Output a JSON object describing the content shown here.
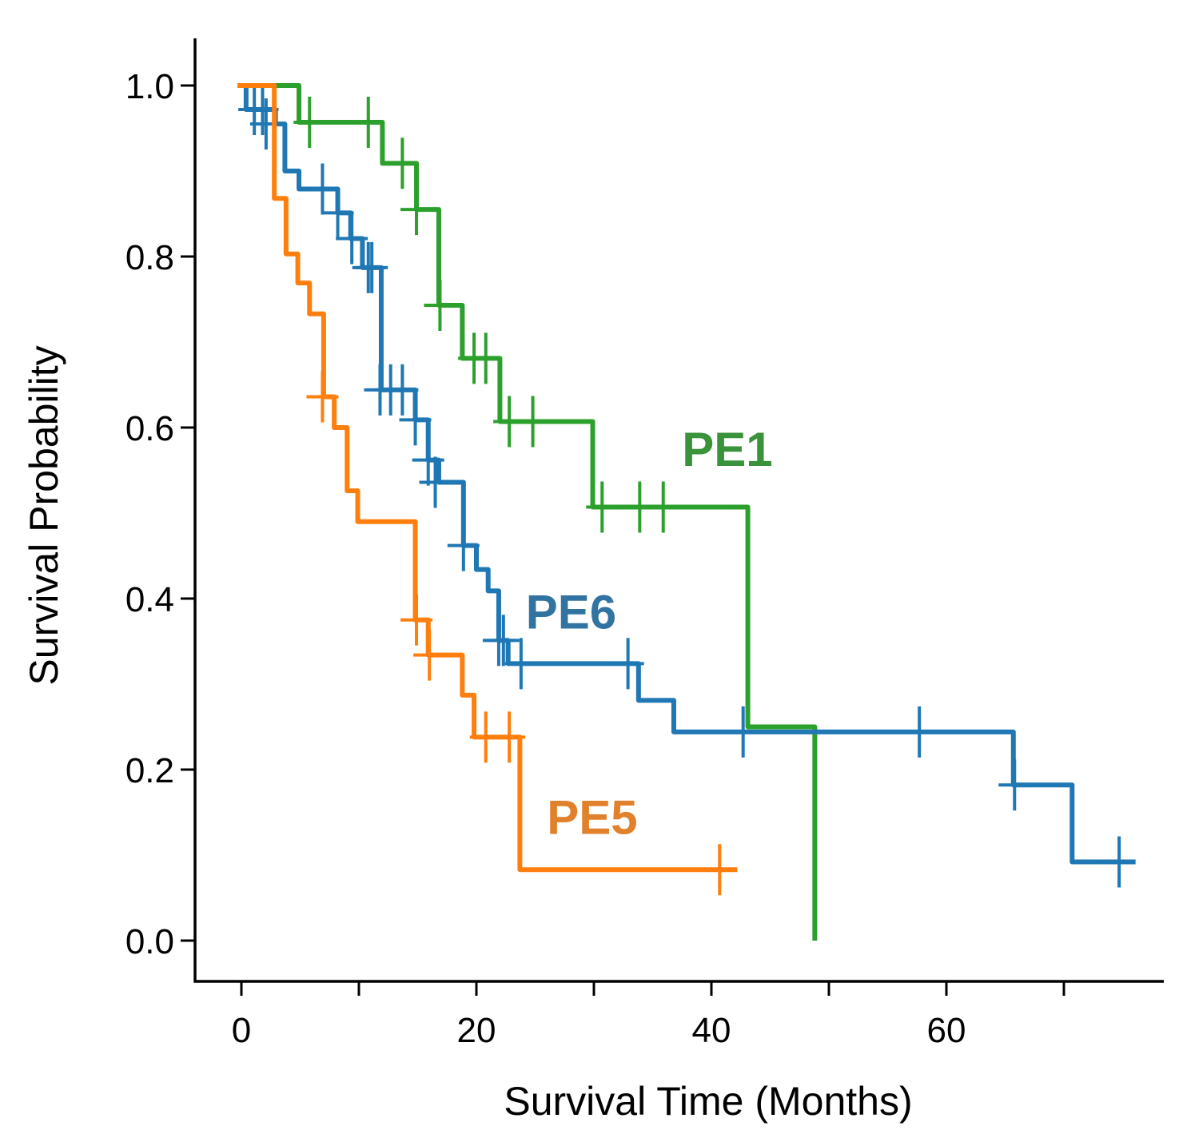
{
  "chart_data": {
    "type": "line",
    "subtype": "kaplan-meier",
    "title": "",
    "xlabel": "Survival Time (Months)",
    "ylabel": "Survival Probability",
    "xlim": [
      -4,
      78.5
    ],
    "ylim": [
      -0.05,
      1.05
    ],
    "xticks": [
      0,
      10,
      20,
      30,
      40,
      50,
      60,
      70
    ],
    "xtick_labels": [
      "0",
      "",
      "20",
      "",
      "40",
      "",
      "60",
      ""
    ],
    "yticks": [
      0.0,
      0.2,
      0.4,
      0.6,
      0.8,
      1.0
    ],
    "ytick_labels": [
      "0.0",
      "0.2",
      "0.4",
      "0.6",
      "0.8",
      "1.0"
    ],
    "grid": false,
    "legend": "none (inline series labels)",
    "series": [
      {
        "name": "PE1",
        "color": "#2ca02c",
        "label_color": "#3a923a",
        "label_pos": [
          37.5,
          0.555
        ],
        "steps": [
          [
            0,
            1.0
          ],
          [
            4.9,
            0.957
          ],
          [
            12.0,
            0.909
          ],
          [
            14.9,
            0.855
          ],
          [
            16.8,
            0.743
          ],
          [
            18.8,
            0.681
          ],
          [
            22.0,
            0.607
          ],
          [
            29.9,
            0.507
          ],
          [
            43.1,
            0.25
          ],
          [
            48.8,
            0.0
          ]
        ],
        "end": 48.8,
        "censored": [
          [
            5.8,
            0.957
          ],
          [
            10.8,
            0.957
          ],
          [
            13.7,
            0.909
          ],
          [
            14.9,
            0.855
          ],
          [
            16.9,
            0.743
          ],
          [
            19.8,
            0.681
          ],
          [
            20.8,
            0.681
          ],
          [
            22.8,
            0.607
          ],
          [
            24.8,
            0.607
          ],
          [
            30.7,
            0.507
          ],
          [
            33.9,
            0.507
          ],
          [
            35.9,
            0.507
          ]
        ]
      },
      {
        "name": "PE6",
        "color": "#1f77b4",
        "label_color": "#3274a1",
        "label_pos": [
          24.2,
          0.365
        ],
        "steps": [
          [
            0,
            1.0
          ],
          [
            0.4,
            0.972
          ],
          [
            2.9,
            0.955
          ],
          [
            3.7,
            0.9
          ],
          [
            4.9,
            0.879
          ],
          [
            8.2,
            0.851
          ],
          [
            9.3,
            0.821
          ],
          [
            10.3,
            0.787
          ],
          [
            11.9,
            0.644
          ],
          [
            14.8,
            0.609
          ],
          [
            15.9,
            0.562
          ],
          [
            16.8,
            0.536
          ],
          [
            18.9,
            0.462
          ],
          [
            20.0,
            0.434
          ],
          [
            21.0,
            0.409
          ],
          [
            21.9,
            0.351
          ],
          [
            22.7,
            0.324
          ],
          [
            33.8,
            0.281
          ],
          [
            36.8,
            0.244
          ],
          [
            65.7,
            0.182
          ],
          [
            70.7,
            0.092
          ]
        ],
        "end": 76.1,
        "censored": [
          [
            1.1,
            0.972
          ],
          [
            1.8,
            0.972
          ],
          [
            2.1,
            0.955
          ],
          [
            6.9,
            0.879
          ],
          [
            8.2,
            0.851
          ],
          [
            9.4,
            0.821
          ],
          [
            10.8,
            0.787
          ],
          [
            11.1,
            0.787
          ],
          [
            11.8,
            0.644
          ],
          [
            12.7,
            0.644
          ],
          [
            13.7,
            0.644
          ],
          [
            14.8,
            0.609
          ],
          [
            15.9,
            0.562
          ],
          [
            16.5,
            0.536
          ],
          [
            18.9,
            0.462
          ],
          [
            21.9,
            0.351
          ],
          [
            22.3,
            0.351
          ],
          [
            23.8,
            0.324
          ],
          [
            32.9,
            0.324
          ],
          [
            42.7,
            0.244
          ],
          [
            57.7,
            0.244
          ],
          [
            65.8,
            0.182
          ],
          [
            74.7,
            0.092
          ]
        ]
      },
      {
        "name": "PE5",
        "color": "#ff7f0e",
        "label_color": "#e1812c",
        "label_pos": [
          26.0,
          0.125
        ],
        "steps": [
          [
            0,
            1.0
          ],
          [
            2.8,
            0.868
          ],
          [
            3.8,
            0.803
          ],
          [
            4.8,
            0.769
          ],
          [
            5.8,
            0.733
          ],
          [
            7.0,
            0.636
          ],
          [
            7.9,
            0.6
          ],
          [
            9.0,
            0.526
          ],
          [
            9.9,
            0.49
          ],
          [
            14.8,
            0.375
          ],
          [
            15.9,
            0.334
          ],
          [
            18.8,
            0.287
          ],
          [
            19.8,
            0.238
          ],
          [
            23.7,
            0.083
          ]
        ],
        "end": 42.2,
        "censored": [
          [
            6.9,
            0.636
          ],
          [
            14.9,
            0.375
          ],
          [
            16.0,
            0.334
          ],
          [
            20.8,
            0.238
          ],
          [
            22.8,
            0.238
          ],
          [
            40.7,
            0.083
          ]
        ]
      }
    ]
  }
}
